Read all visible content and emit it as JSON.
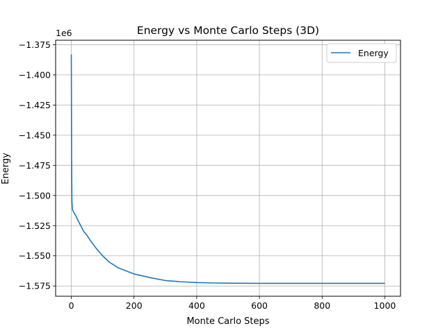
{
  "chart_data": {
    "type": "line",
    "title": "Energy vs Monte Carlo Steps (3D)",
    "xlabel": "Monte Carlo Steps",
    "ylabel": "Energy",
    "y_offset_label": "1e6",
    "xlim": [
      -50,
      1050
    ],
    "ylim": [
      -1.5835,
      -1.3713
    ],
    "xticks": [
      0,
      200,
      400,
      600,
      800,
      1000
    ],
    "yticks": [
      -1.375,
      -1.4,
      -1.425,
      -1.45,
      -1.475,
      -1.5,
      -1.525,
      -1.55,
      -1.575
    ],
    "ytick_labels": [
      "−1.375",
      "−1.400",
      "−1.425",
      "−1.450",
      "−1.475",
      "−1.500",
      "−1.525",
      "−1.550",
      "−1.575"
    ],
    "grid": true,
    "legend_position": "top-right",
    "series": [
      {
        "name": "Energy",
        "color": "#1f77b4",
        "x": [
          0,
          1,
          2,
          4,
          6,
          10,
          15,
          20,
          30,
          40,
          50,
          60,
          80,
          100,
          120,
          150,
          200,
          250,
          300,
          350,
          400,
          450,
          500,
          600,
          700,
          800,
          900,
          1000
        ],
        "y": [
          -1.383,
          -1.47,
          -1.505,
          -1.512,
          -1.513,
          -1.515,
          -1.517,
          -1.52,
          -1.525,
          -1.53,
          -1.533,
          -1.537,
          -1.544,
          -1.55,
          -1.555,
          -1.56,
          -1.565,
          -1.568,
          -1.5705,
          -1.5715,
          -1.5722,
          -1.5725,
          -1.5727,
          -1.5728,
          -1.5728,
          -1.5728,
          -1.5728,
          -1.5728
        ]
      }
    ]
  }
}
